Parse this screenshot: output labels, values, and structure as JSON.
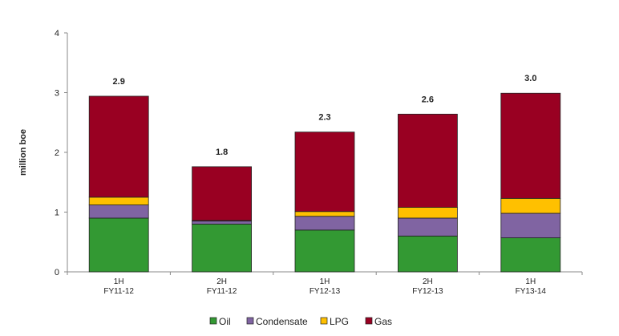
{
  "chart_data": {
    "type": "bar",
    "stacked": true,
    "ylabel": "million boe",
    "ylim": [
      0,
      4
    ],
    "yticks": [
      "0",
      "1",
      "2",
      "3",
      "4"
    ],
    "grid": false,
    "legend_position": "bottom",
    "categories": [
      [
        "1H",
        "FY11-12"
      ],
      [
        "2H",
        "FY11-12"
      ],
      [
        "1H",
        "FY12-13"
      ],
      [
        "2H",
        "FY12-13"
      ],
      [
        "1H",
        "FY13-14"
      ]
    ],
    "totals": [
      "2.9",
      "1.8",
      "2.3",
      "2.6",
      "3.0"
    ],
    "series": [
      {
        "name": "Oil",
        "color": "#339933",
        "values": [
          0.9,
          0.8,
          0.7,
          0.6,
          0.57
        ]
      },
      {
        "name": "Condensate",
        "color": "#8064A2",
        "values": [
          0.22,
          0.05,
          0.23,
          0.3,
          0.41
        ]
      },
      {
        "name": "LPG",
        "color": "#FFC000",
        "values": [
          0.13,
          0.01,
          0.08,
          0.18,
          0.25
        ]
      },
      {
        "name": "Gas",
        "color": "#990022",
        "values": [
          1.69,
          0.9,
          1.33,
          1.56,
          1.76
        ]
      }
    ]
  }
}
